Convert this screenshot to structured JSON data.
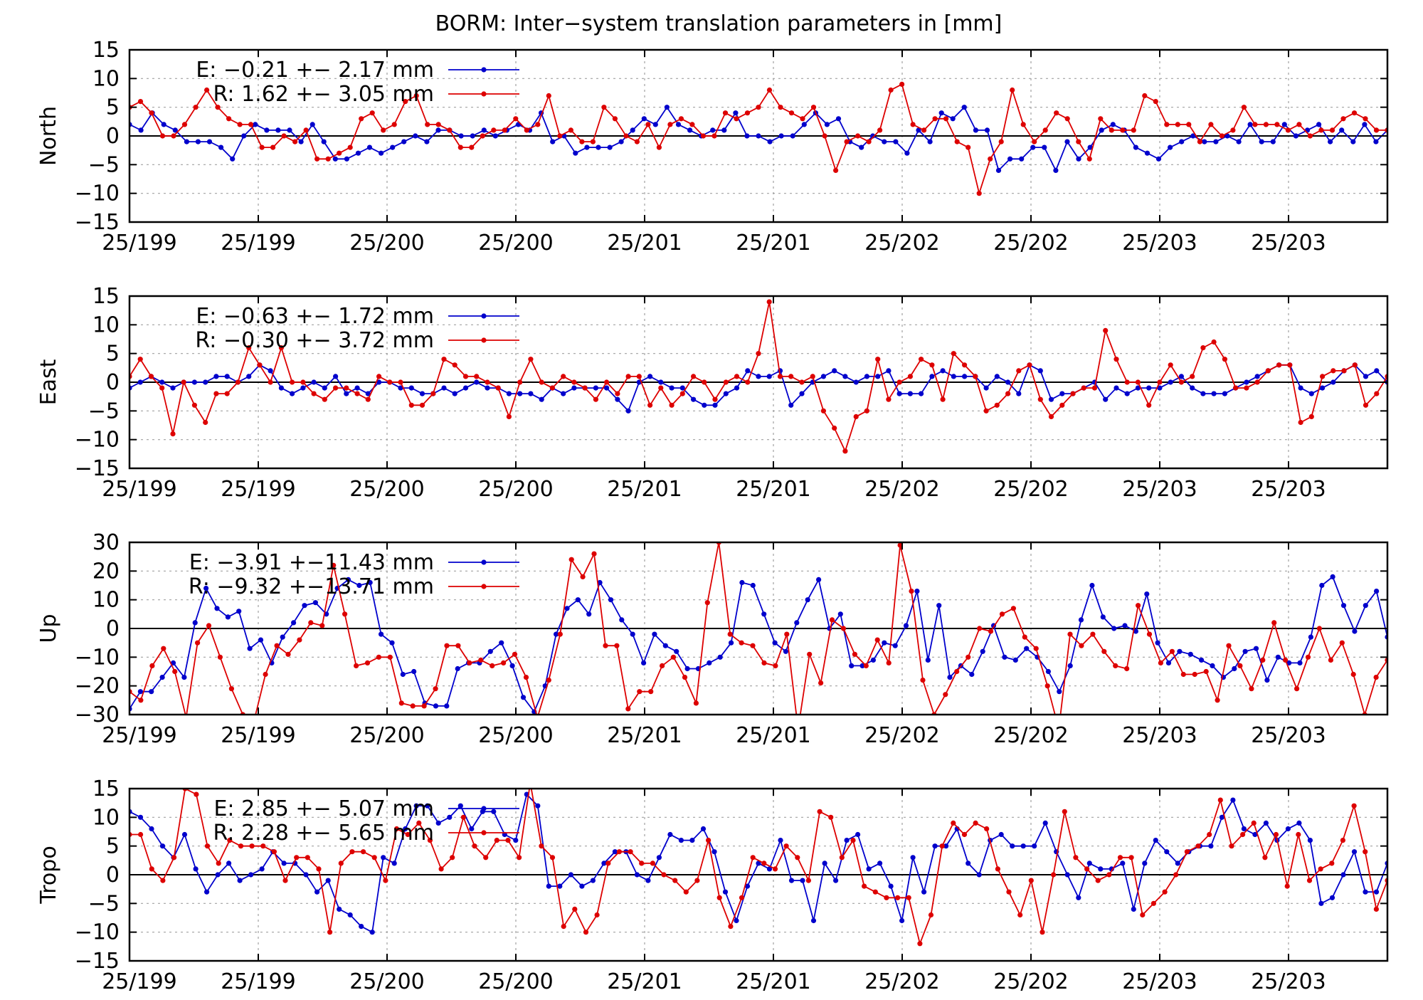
{
  "title": "BORM: Inter−system translation parameters in [mm]",
  "colors": {
    "E": "#0000cc",
    "R": "#dd0000"
  },
  "chart_data": [
    {
      "type": "line",
      "id": "north",
      "ylabel": "North",
      "ylim": [
        -15,
        15
      ],
      "yticks": [
        15,
        10,
        5,
        0,
        -5,
        -10,
        -15
      ],
      "ytick_labels": [
        "15",
        "10",
        "5",
        "0",
        "−5",
        "−10",
        "−15"
      ],
      "x_tick_labels": [
        "25/199",
        "25/199",
        "25/200",
        "25/200",
        "25/201",
        "25/201",
        "25/202",
        "25/202",
        "25/203",
        "25/203"
      ],
      "grid": true,
      "legend_position": "top-left",
      "series": [
        {
          "name": "E",
          "legend": "E:  −0.21 +− 2.17 mm",
          "values": [
            2,
            1,
            4,
            2,
            1,
            -1,
            -1,
            -1,
            -2,
            -4,
            0,
            2,
            1,
            1,
            1,
            -1,
            2,
            -1,
            -4,
            -4,
            -3,
            -2,
            -3,
            -2,
            -1,
            0,
            -1,
            1,
            1,
            0,
            0,
            1,
            0,
            1,
            2,
            1,
            4,
            -1,
            0,
            -3,
            -2,
            -2,
            -2,
            -1,
            1,
            3,
            2,
            5,
            2,
            1,
            0,
            1,
            1,
            4,
            0,
            0,
            -1,
            0,
            0,
            2,
            4,
            2,
            3,
            -1,
            -2,
            0,
            -1,
            -1,
            -3,
            1,
            -1,
            4,
            3,
            5,
            1,
            1,
            -6,
            -4,
            -4,
            -2,
            -2,
            -6,
            -1,
            -4,
            -2,
            1,
            2,
            1,
            -2,
            -3,
            -4,
            -2,
            -1,
            0,
            -1,
            -1,
            0,
            -1,
            2,
            -1,
            -1,
            2,
            0,
            1,
            2,
            -1,
            1,
            -1,
            2,
            -1,
            1
          ]
        },
        {
          "name": "R",
          "legend": "R:   1.62 +− 3.05 mm",
          "values": [
            5,
            6,
            4,
            0,
            0,
            2,
            5,
            8,
            5,
            3,
            2,
            2,
            -2,
            -2,
            0,
            -1,
            1,
            -4,
            -4,
            -3,
            -2,
            3,
            4,
            1,
            2,
            6,
            7,
            2,
            2,
            1,
            -2,
            -2,
            0,
            1,
            1,
            3,
            1,
            2,
            7,
            0,
            1,
            -1,
            -1,
            5,
            3,
            0,
            -1,
            2,
            -2,
            2,
            3,
            2,
            0,
            0,
            4,
            3,
            4,
            5,
            8,
            5,
            4,
            3,
            5,
            0,
            -6,
            -1,
            0,
            -1,
            1,
            8,
            9,
            2,
            1,
            3,
            3,
            -1,
            -2,
            -10,
            -4,
            -1,
            8,
            2,
            -1,
            1,
            4,
            3,
            -1,
            -4,
            3,
            1,
            1,
            1,
            7,
            6,
            2,
            2,
            2,
            -1,
            2,
            0,
            1,
            5,
            2,
            2,
            2,
            1,
            2,
            0,
            1,
            1,
            3,
            4,
            3,
            1,
            1
          ]
        }
      ]
    },
    {
      "type": "line",
      "id": "east",
      "ylabel": "East",
      "ylim": [
        -15,
        15
      ],
      "yticks": [
        15,
        10,
        5,
        0,
        -5,
        -10,
        -15
      ],
      "ytick_labels": [
        "15",
        "10",
        "5",
        "0",
        "−5",
        "−10",
        "−15"
      ],
      "x_tick_labels": [
        "25/199",
        "25/199",
        "25/200",
        "25/200",
        "25/201",
        "25/201",
        "25/202",
        "25/202",
        "25/203",
        "25/203"
      ],
      "grid": true,
      "legend_position": "top-left",
      "series": [
        {
          "name": "E",
          "legend": "E:  −0.63 +− 1.72 mm",
          "values": [
            -1,
            0,
            1,
            0,
            -1,
            0,
            0,
            0,
            1,
            1,
            0,
            1,
            3,
            2,
            -1,
            -2,
            -1,
            0,
            -1,
            1,
            -2,
            -1,
            -2,
            0,
            0,
            -1,
            -1,
            -2,
            -2,
            -1,
            -2,
            -1,
            0,
            -1,
            -1,
            -2,
            -2,
            -2,
            -3,
            -1,
            -2,
            -1,
            -1,
            -1,
            -1,
            -3,
            -5,
            0,
            1,
            0,
            -1,
            -1,
            -3,
            -4,
            -4,
            -2,
            -1,
            2,
            1,
            1,
            2,
            -4,
            -2,
            0,
            1,
            2,
            1,
            0,
            1,
            1,
            2,
            -2,
            -2,
            -2,
            1,
            2,
            1,
            1,
            1,
            -1,
            1,
            0,
            -2,
            3,
            2,
            -3,
            -2,
            -2,
            -1,
            0,
            -3,
            -1,
            -2,
            -1,
            -1,
            -1,
            0,
            1,
            -1,
            -2,
            -2,
            -2,
            -1,
            0,
            1,
            2,
            3,
            3,
            -1,
            -2,
            -1,
            0,
            2,
            3,
            1,
            2,
            0
          ]
        },
        {
          "name": "R",
          "legend": "R:  −0.30 +− 3.72 mm",
          "values": [
            1,
            4,
            1,
            -1,
            -9,
            0,
            -4,
            -7,
            -2,
            -2,
            0,
            6,
            3,
            0,
            6,
            0,
            0,
            -2,
            -3,
            -1,
            -1,
            -2,
            -3,
            1,
            0,
            0,
            -4,
            -4,
            -2,
            4,
            3,
            1,
            1,
            0,
            -1,
            -6,
            0,
            4,
            0,
            -1,
            1,
            0,
            -1,
            -3,
            0,
            -2,
            1,
            1,
            -4,
            -1,
            -4,
            -2,
            1,
            0,
            -3,
            0,
            1,
            0,
            5,
            14,
            1,
            1,
            0,
            1,
            -5,
            -8,
            -12,
            -6,
            -5,
            4,
            -3,
            0,
            1,
            4,
            3,
            -3,
            5,
            3,
            1,
            -5,
            -4,
            -2,
            2,
            3,
            -3,
            -6,
            -4,
            -2,
            -1,
            -1,
            9,
            4,
            0,
            0,
            -4,
            0,
            3,
            0,
            1,
            6,
            7,
            4,
            -1,
            -1,
            0,
            2,
            3,
            3,
            -7,
            -6,
            1,
            2,
            2,
            3,
            -4,
            -2,
            1
          ]
        }
      ]
    },
    {
      "type": "line",
      "id": "up",
      "ylabel": "Up",
      "ylim": [
        -30,
        30
      ],
      "yticks": [
        30,
        20,
        10,
        0,
        -10,
        -20,
        -30
      ],
      "ytick_labels": [
        "30",
        "20",
        "10",
        "0",
        "−10",
        "−20",
        "−30"
      ],
      "x_tick_labels": [
        "25/199",
        "25/199",
        "25/200",
        "25/200",
        "25/201",
        "25/201",
        "25/202",
        "25/202",
        "25/203",
        "25/203"
      ],
      "grid": true,
      "legend_position": "top-left",
      "series": [
        {
          "name": "E",
          "legend": "E:  −3.91 +−11.43 mm",
          "values": [
            -28,
            -22,
            -22,
            -17,
            -12,
            -17,
            2,
            14,
            7,
            4,
            6,
            -7,
            -4,
            -12,
            -3,
            2,
            8,
            9,
            5,
            14,
            17,
            15,
            16,
            -2,
            -5,
            -16,
            -15,
            -26,
            -27,
            -27,
            -14,
            -12,
            -12,
            -8,
            -5,
            -13,
            -24,
            -29,
            -20,
            -2,
            7,
            10,
            5,
            16,
            10,
            3,
            -2,
            -12,
            -2,
            -6,
            -8,
            -14,
            -14,
            -12,
            -10,
            -5,
            16,
            15,
            5,
            -5,
            -8,
            2,
            10,
            17,
            0,
            5,
            -13,
            -13,
            -11,
            -5,
            -6,
            1,
            13,
            -11,
            8,
            -17,
            -13,
            -16,
            -8,
            1,
            -10,
            -11,
            -7,
            -10,
            -15,
            -22,
            -13,
            3,
            15,
            4,
            0,
            1,
            -1,
            12,
            -5,
            -12,
            -8,
            -9,
            -11,
            -13,
            -17,
            -14,
            -8,
            -7,
            -18,
            -10,
            -12,
            -12,
            -3,
            15,
            18,
            8,
            -1,
            8,
            13,
            -3
          ]
        },
        {
          "name": "R",
          "legend": "R:  −9.32 +−13.71 mm",
          "values": [
            -22,
            -25,
            -13,
            -7,
            -15,
            -31,
            -5,
            1,
            -10,
            -21,
            -30,
            -32,
            -16,
            -6,
            -9,
            -4,
            2,
            1,
            22,
            5,
            -13,
            -12,
            -10,
            -10,
            -26,
            -27,
            -27,
            -21,
            -6,
            -6,
            -12,
            -11,
            -13,
            -12,
            -9,
            -17,
            -31,
            -18,
            -2,
            24,
            18,
            26,
            -6,
            -6,
            -28,
            -22,
            -22,
            -13,
            -10,
            -17,
            -26,
            9,
            30,
            -2,
            -5,
            -6,
            -12,
            -13,
            -2,
            -35,
            -9,
            -19,
            3,
            0,
            -9,
            -13,
            -4,
            -12,
            29,
            13,
            -18,
            -30,
            -23,
            -15,
            -10,
            0,
            -1,
            5,
            7,
            -3,
            -7,
            -20,
            -35,
            -2,
            -6,
            -2,
            -8,
            -13,
            -14,
            8,
            -2,
            -12,
            -8,
            -16,
            -16,
            -15,
            -25,
            -6,
            -13,
            -21,
            -11,
            2,
            -11,
            -21,
            -10,
            0,
            -11,
            -5,
            -16,
            -30,
            -17,
            -11
          ]
        }
      ]
    },
    {
      "type": "line",
      "id": "tropo",
      "ylabel": "Tropo",
      "ylim": [
        -15,
        15
      ],
      "yticks": [
        15,
        10,
        5,
        0,
        -5,
        -10,
        -15
      ],
      "ytick_labels": [
        "15",
        "10",
        "5",
        "0",
        "−5",
        "−10",
        "−15"
      ],
      "x_tick_labels": [
        "25/199",
        "25/199",
        "25/200",
        "25/200",
        "25/201",
        "25/201",
        "25/202",
        "25/202",
        "25/203",
        "25/203"
      ],
      "grid": true,
      "legend_position": "top-left",
      "series": [
        {
          "name": "E",
          "legend": "E:   2.85 +− 5.07 mm",
          "values": [
            11,
            10,
            8,
            5,
            3,
            7,
            1,
            -3,
            0,
            2,
            -1,
            0,
            1,
            4,
            2,
            2,
            0,
            -3,
            -1,
            -6,
            -7,
            -9,
            -10,
            3,
            2,
            8,
            12,
            12,
            9,
            10,
            12,
            8,
            11,
            11,
            7,
            6,
            14,
            12,
            -2,
            -2,
            0,
            -2,
            -1,
            2,
            4,
            4,
            0,
            -1,
            3,
            7,
            6,
            6,
            8,
            4,
            -3,
            -8,
            -2,
            2,
            1,
            6,
            -1,
            -1,
            -8,
            2,
            -1,
            6,
            7,
            1,
            2,
            -2,
            -8,
            3,
            -3,
            5,
            5,
            8,
            2,
            0,
            6,
            7,
            5,
            5,
            5,
            9,
            4,
            0,
            -4,
            2,
            1,
            1,
            2,
            -6,
            2,
            6,
            4,
            2,
            4,
            5,
            5,
            10,
            13,
            8,
            7,
            9,
            6,
            8,
            9,
            6,
            -5,
            -4,
            0,
            4,
            -3,
            -3,
            2
          ]
        },
        {
          "name": "R",
          "legend": "R:   2.28 +− 5.65 mm",
          "values": [
            7,
            7,
            1,
            -1,
            3,
            15,
            14,
            5,
            2,
            6,
            5,
            5,
            5,
            4,
            -1,
            3,
            3,
            1,
            -10,
            2,
            4,
            4,
            3,
            -1,
            8,
            7,
            9,
            6,
            1,
            3,
            10,
            5,
            3,
            6,
            6,
            3,
            16,
            5,
            3,
            -9,
            -6,
            -10,
            -7,
            2,
            4,
            4,
            2,
            2,
            0,
            -1,
            -3,
            -1,
            6,
            -4,
            -9,
            -4,
            3,
            2,
            1,
            5,
            3,
            -1,
            11,
            10,
            3,
            6,
            -2,
            -3,
            -4,
            -4,
            -4,
            -12,
            -7,
            5,
            9,
            7,
            9,
            8,
            1,
            -3,
            -7,
            -1,
            -10,
            0,
            11,
            3,
            1,
            -1,
            0,
            3,
            3,
            -7,
            -5,
            -3,
            0,
            4,
            5,
            7,
            13,
            5,
            7,
            9,
            3,
            7,
            -2,
            7,
            -1,
            1,
            2,
            6,
            12,
            4,
            -6,
            -1
          ]
        }
      ]
    }
  ]
}
